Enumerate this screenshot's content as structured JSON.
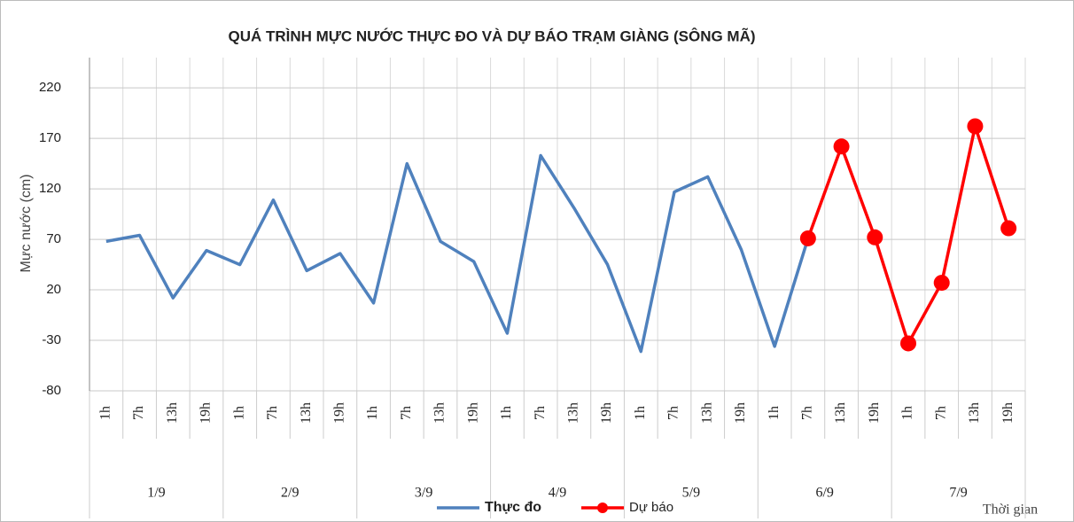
{
  "chart_data": {
    "type": "line",
    "title": "QUÁ TRÌNH MỰC NƯỚC THỰC ĐO VÀ DỰ BÁO TRẠM  GIÀNG (SÔNG MÃ)",
    "y_label": "Mực nước (cm)",
    "x_label": "Thời gian",
    "categories": [
      "1h",
      "7h",
      "13h",
      "19h",
      "1h",
      "7h",
      "13h",
      "19h",
      "1h",
      "7h",
      "13h",
      "19h",
      "1h",
      "7h",
      "13h",
      "19h",
      "1h",
      "7h",
      "13h",
      "19h",
      "1h",
      "7h",
      "13h",
      "19h",
      "1h",
      "7h",
      "13h",
      "19h"
    ],
    "x_groups": [
      "1/9",
      "2/9",
      "3/9",
      "4/9",
      "5/9",
      "6/9",
      "7/9"
    ],
    "series": [
      {
        "name": "Thực đo",
        "color": "#4f81bd",
        "values": [
          68,
          74,
          12,
          59,
          45,
          109,
          39,
          56,
          7,
          145,
          68,
          48,
          -23,
          153,
          101,
          45,
          -41,
          117,
          132,
          60,
          -36,
          71,
          null,
          null,
          null,
          null,
          null,
          null
        ]
      },
      {
        "name": "Dự báo",
        "color": "#ff0000",
        "values": [
          null,
          null,
          null,
          null,
          null,
          null,
          null,
          null,
          null,
          null,
          null,
          null,
          null,
          null,
          null,
          null,
          null,
          null,
          null,
          null,
          null,
          71,
          162,
          72,
          -33,
          27,
          182,
          81
        ]
      }
    ],
    "ylim": [
      -80,
      250
    ],
    "yticks": [
      -80,
      -30,
      20,
      70,
      120,
      170,
      220
    ],
    "grid": true,
    "legend": "bottom"
  }
}
